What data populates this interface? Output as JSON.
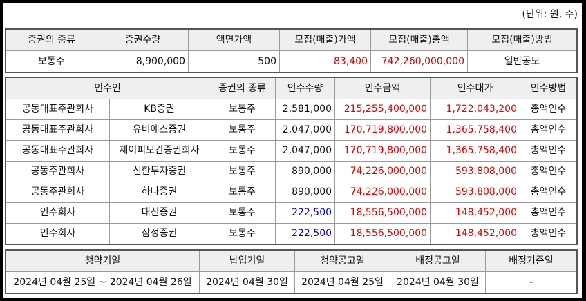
{
  "unit_note": "(단위: 원, 주)",
  "offering": {
    "headers": [
      "증권의 종류",
      "증권수량",
      "액면가액",
      "모집(매출)가액",
      "모집(매출)총액",
      "모집(매출)방법"
    ],
    "row": {
      "type": "보통주",
      "quantity": "8,900,000",
      "par_value": "500",
      "price": "83,400",
      "total": "742,260,000,000",
      "method": "일반공모"
    }
  },
  "underwriters": {
    "headers": [
      "인수인",
      "증권의 종류",
      "인수수량",
      "인수금액",
      "인수대가",
      "인수방법"
    ],
    "rows": [
      {
        "role": "공동대표주관회사",
        "firm": "KB증권",
        "type": "보통주",
        "qty": "2,581,000",
        "amount": "215,255,400,000",
        "fee": "1,722,043,200",
        "method": "총액인수"
      },
      {
        "role": "공동대표주관회사",
        "firm": "유비에스증권",
        "type": "보통주",
        "qty": "2,047,000",
        "amount": "170,719,800,000",
        "fee": "1,365,758,400",
        "method": "총액인수"
      },
      {
        "role": "공동대표주관회사",
        "firm": "제이피모간증권회사",
        "type": "보통주",
        "qty": "2,047,000",
        "amount": "170,719,800,000",
        "fee": "1,365,758,400",
        "method": "총액인수"
      },
      {
        "role": "공동주관회사",
        "firm": "신한투자증권",
        "type": "보통주",
        "qty": "890,000",
        "amount": "74,226,000,000",
        "fee": "593,808,000",
        "method": "총액인수"
      },
      {
        "role": "공동주관회사",
        "firm": "하나증권",
        "type": "보통주",
        "qty": "890,000",
        "amount": "74,226,000,000",
        "fee": "593,808,000",
        "method": "총액인수"
      },
      {
        "role": "인수회사",
        "firm": "대신증권",
        "type": "보통주",
        "qty": "222,500",
        "amount": "18,556,500,000",
        "fee": "148,452,000",
        "method": "총액인수"
      },
      {
        "role": "인수회사",
        "firm": "삼성증권",
        "type": "보통주",
        "qty": "222,500",
        "amount": "18,556,500,000",
        "fee": "148,452,000",
        "method": "총액인수"
      }
    ]
  },
  "schedule": {
    "headers": [
      "청약기일",
      "납입기일",
      "청약공고일",
      "배정공고일",
      "배정기준일"
    ],
    "row": {
      "subscription_period": "2024년 04월 25일 ~ 2024년 04월 26일",
      "payment_date": "2024년 04월 30일",
      "subscription_notice": "2024년 04월 25일",
      "allocation_notice": "2024년 04월 30일",
      "allocation_base": "-"
    }
  },
  "colors": {
    "amount_red": "#e00000",
    "qty_blue": "#0000d0",
    "header_bg": "#efefef"
  }
}
